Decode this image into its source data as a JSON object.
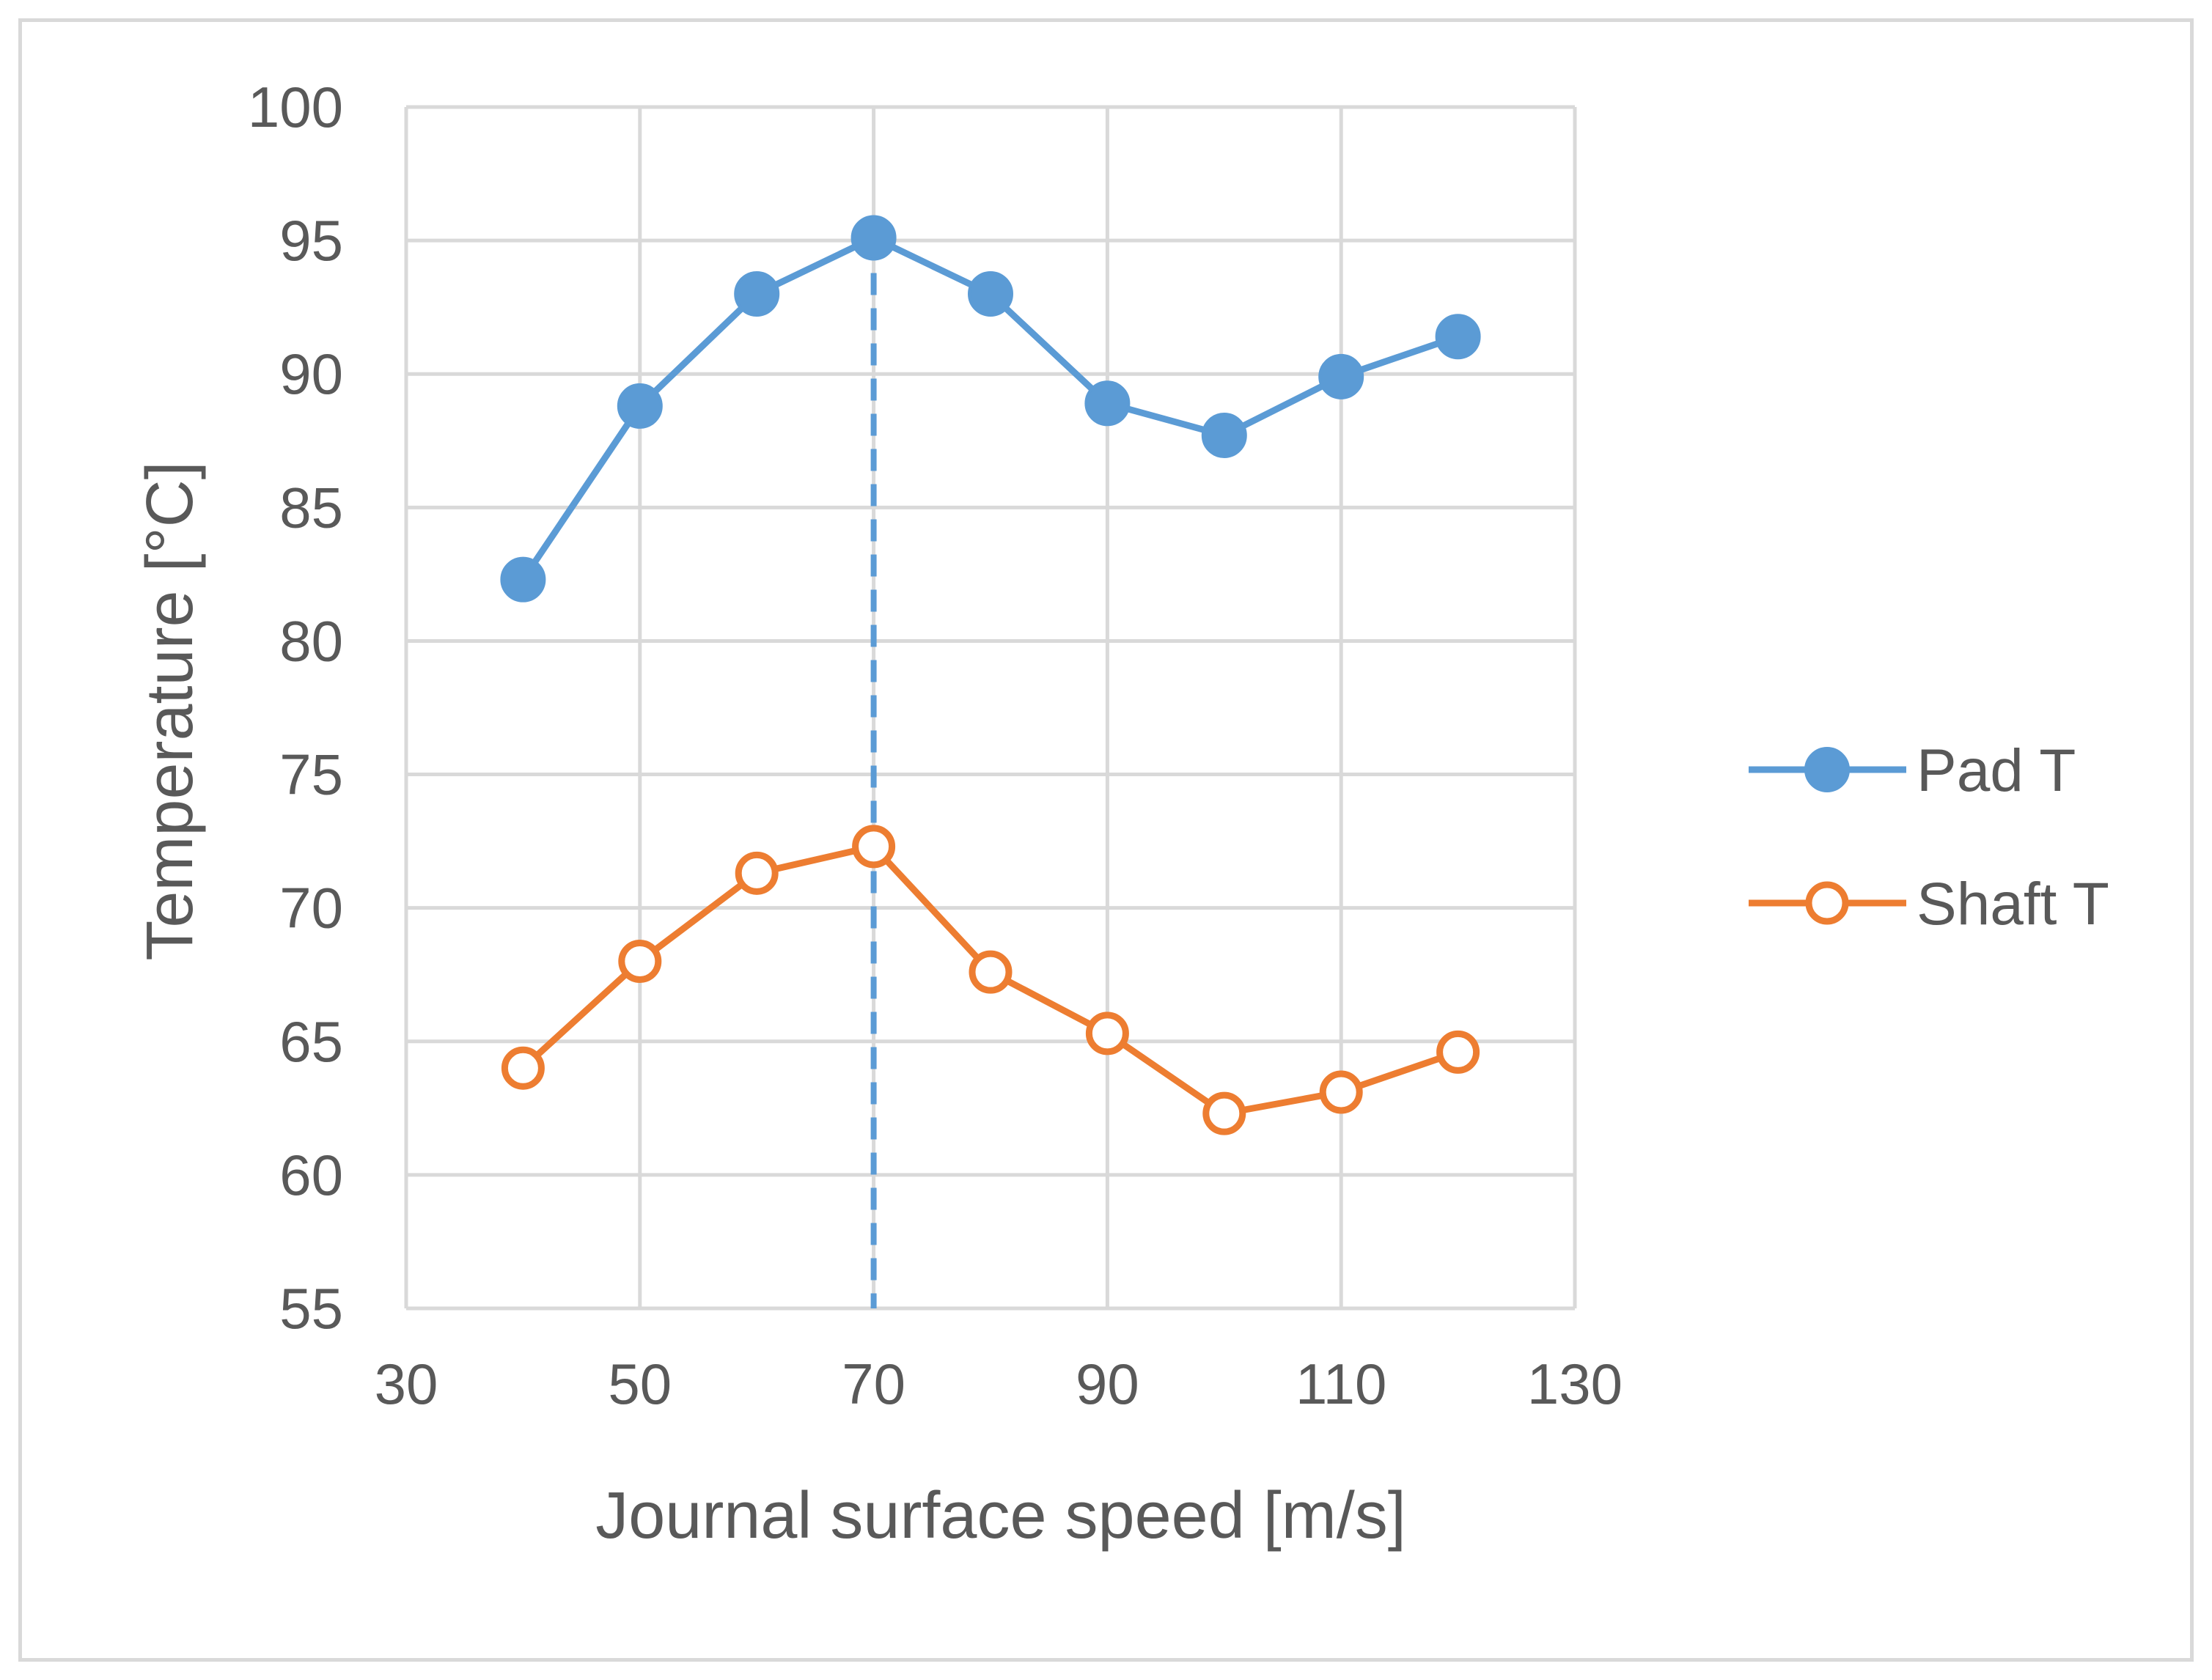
{
  "chart_data": {
    "type": "line",
    "title": "",
    "xlabel": "Journal surface speed [m/s]",
    "ylabel": "Temperature [°C]",
    "xlim": [
      30,
      130
    ],
    "ylim": [
      55,
      100
    ],
    "xticks": [
      30,
      50,
      70,
      90,
      110,
      130
    ],
    "yticks": [
      55,
      60,
      65,
      70,
      75,
      80,
      85,
      90,
      95,
      100
    ],
    "grid": true,
    "legend_position": "right",
    "x": [
      40,
      50,
      60,
      70,
      80,
      90,
      100,
      110,
      120
    ],
    "series": [
      {
        "name": "Pad T",
        "values": [
          82.3,
          88.8,
          93.0,
          95.1,
          93.0,
          88.9,
          87.7,
          89.9,
          91.4
        ],
        "color": "#5b9bd5",
        "marker": "filled-circle"
      },
      {
        "name": "Shaft T",
        "values": [
          64.0,
          68.0,
          71.3,
          72.3,
          67.6,
          65.3,
          62.3,
          63.1,
          64.6
        ],
        "color": "#ed7d31",
        "marker": "hollow-circle"
      }
    ],
    "annotations": [
      {
        "type": "vertical-dashed-line",
        "x": 70,
        "y_from": 55,
        "y_to": 95.1,
        "color": "#5b9bd5"
      }
    ],
    "colors": {
      "grid": "#d9d9d9",
      "text": "#595959",
      "frame": "#d9d9d9"
    }
  }
}
